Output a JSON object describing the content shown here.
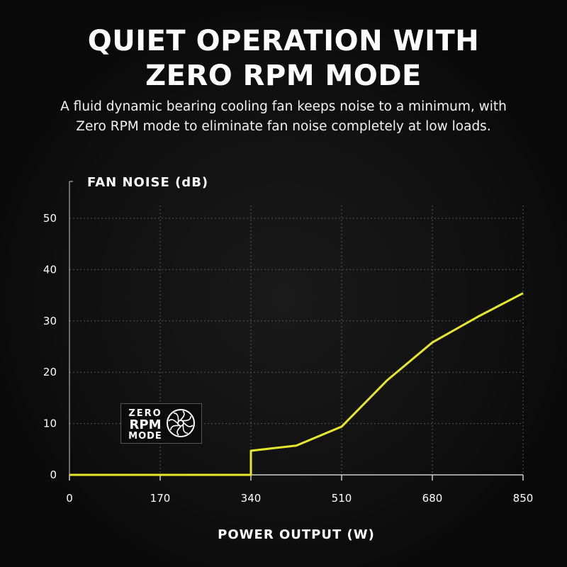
{
  "header": {
    "title_line1": "QUIET OPERATION WITH",
    "title_line2": "ZERO RPM MODE",
    "subtitle_line1": "A fluid dynamic bearing cooling fan keeps noise to a minimum, with",
    "subtitle_line2": "Zero RPM mode to eliminate fan noise completely at low loads."
  },
  "badge": {
    "line1": "ZERO",
    "line2": "RPM",
    "line3": "MODE",
    "icon": "fan-icon"
  },
  "chart_data": {
    "type": "line",
    "ylabel": "FAN NOISE (dB)",
    "xlabel": "POWER OUTPUT (W)",
    "xlim": [
      0,
      850
    ],
    "ylim": [
      0,
      50
    ],
    "xticks": [
      0,
      170,
      340,
      510,
      680,
      850
    ],
    "yticks": [
      0,
      10,
      20,
      30,
      40,
      50
    ],
    "grid": true,
    "line_color": "#e6e62a",
    "series": [
      {
        "x": [
          0,
          340,
          340,
          425,
          510,
          595,
          680,
          765,
          850
        ],
        "y": [
          0,
          0,
          4.7,
          5.7,
          9.4,
          18.4,
          25.8,
          30.8,
          35.4
        ]
      }
    ]
  }
}
